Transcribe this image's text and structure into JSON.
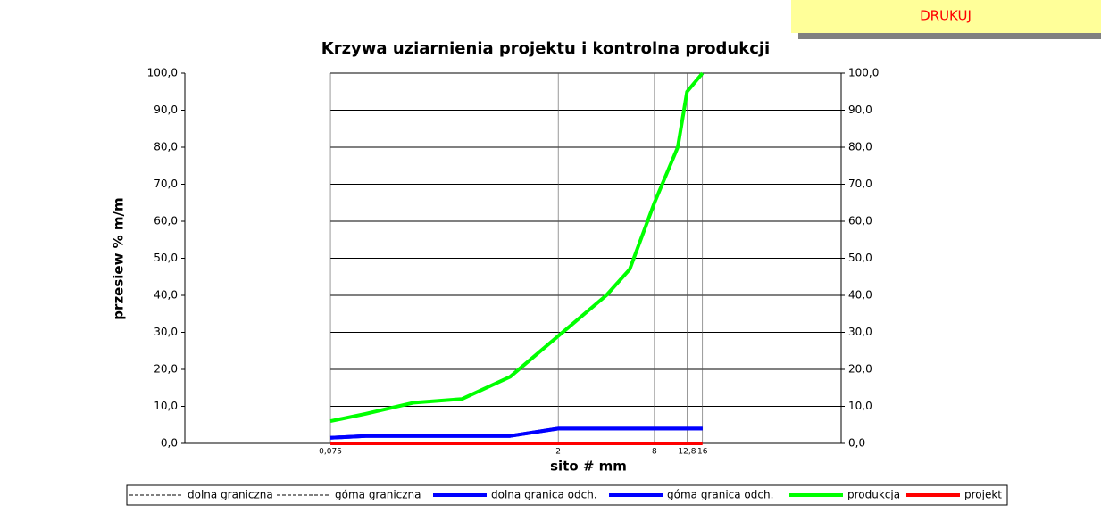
{
  "button": {
    "label": "DRUKUJ"
  },
  "chart_data": {
    "type": "line",
    "title": "Krzywa uziarnienia projektu i kontrolna produkcji",
    "xlabel": "sito # mm",
    "ylabel": "przesiew % m/m",
    "xscale": "log",
    "xlim": [
      0.0092,
      118
    ],
    "xticks": [
      {
        "value": 0.075,
        "label": "0,075"
      },
      2,
      8,
      {
        "value": 12.8,
        "label": "12,8"
      },
      16
    ],
    "ylim": [
      0,
      100
    ],
    "yticks": [
      {
        "value": 0,
        "label": "0,0"
      },
      {
        "value": 10,
        "label": "10,0"
      },
      {
        "value": 20,
        "label": "20,0"
      },
      {
        "value": 30,
        "label": "30,0"
      },
      {
        "value": 40,
        "label": "40,0"
      },
      {
        "value": 50,
        "label": "50,0"
      },
      {
        "value": 60,
        "label": "60,0"
      },
      {
        "value": 70,
        "label": "70,0"
      },
      {
        "value": 80,
        "label": "80,0"
      },
      {
        "value": 90,
        "label": "90,0"
      },
      {
        "value": 100,
        "label": "100,0"
      }
    ],
    "grid": true,
    "x": [
      0.075,
      0.125,
      0.25,
      0.5,
      1,
      2,
      4,
      5.6,
      8,
      11.2,
      12.8,
      16
    ],
    "series": [
      {
        "name": "dolna graniczna",
        "color": "#000000",
        "dash": true,
        "values": [
          null,
          null,
          null,
          null,
          null,
          null,
          null,
          null,
          null,
          null,
          null,
          null
        ]
      },
      {
        "name": "góma graniczna",
        "color": "#000000",
        "dash": true,
        "values": [
          null,
          null,
          null,
          null,
          null,
          null,
          null,
          null,
          null,
          null,
          null,
          null
        ]
      },
      {
        "name": "dolna granica odch.",
        "color": "#0000ff",
        "values": [
          1.5,
          2,
          2,
          2,
          2,
          4,
          4,
          4,
          4,
          4,
          4,
          4
        ]
      },
      {
        "name": "góma granica odch.",
        "color": "#0000ff",
        "values": [
          1.5,
          2,
          2,
          2,
          2,
          4,
          4,
          4,
          4,
          4,
          4,
          4
        ]
      },
      {
        "name": "produkcja",
        "color": "#00ff00",
        "values": [
          6,
          8,
          11,
          12,
          18,
          29,
          40,
          47,
          65,
          80,
          95,
          100
        ]
      },
      {
        "name": "projekt",
        "color": "#ff0000",
        "values": [
          0,
          0,
          0,
          0,
          0,
          0,
          0,
          0,
          0,
          0,
          0,
          0
        ]
      }
    ]
  }
}
